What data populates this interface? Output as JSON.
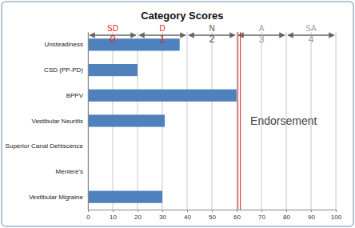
{
  "chart_data": {
    "type": "bar",
    "title": "Category Scores",
    "orientation": "horizontal",
    "categories": [
      "Unsteadiness",
      "CSD (PP-PD)",
      "BPPV",
      "Vestibular Neuritis",
      "Superior Canal Dehiscence",
      "Meniere's",
      "Vestibular Migraine"
    ],
    "values": [
      37,
      20,
      60,
      31,
      0,
      0,
      30
    ],
    "color": "#4f81bd",
    "xlim": [
      0,
      100
    ],
    "xticks": [
      0,
      10,
      20,
      30,
      40,
      50,
      60,
      70,
      80,
      90,
      100
    ],
    "grid": true,
    "annotations": {
      "bands": [
        {
          "label": "SD",
          "value": 0,
          "from": 0,
          "to": 20,
          "color": "#e02424"
        },
        {
          "label": "D",
          "value": 1,
          "from": 20,
          "to": 40,
          "color": "#e02424"
        },
        {
          "label": "N",
          "value": 2,
          "from": 40,
          "to": 60,
          "color": "#555555"
        },
        {
          "label": "A",
          "value": 3,
          "from": 60,
          "to": 80,
          "color": "#a0a0a0"
        },
        {
          "label": "SA",
          "value": 4,
          "from": 80,
          "to": 100,
          "color": "#a0a0a0"
        }
      ],
      "threshold": {
        "value": 61,
        "label": "Endorsement",
        "color": "#e02424"
      }
    }
  }
}
